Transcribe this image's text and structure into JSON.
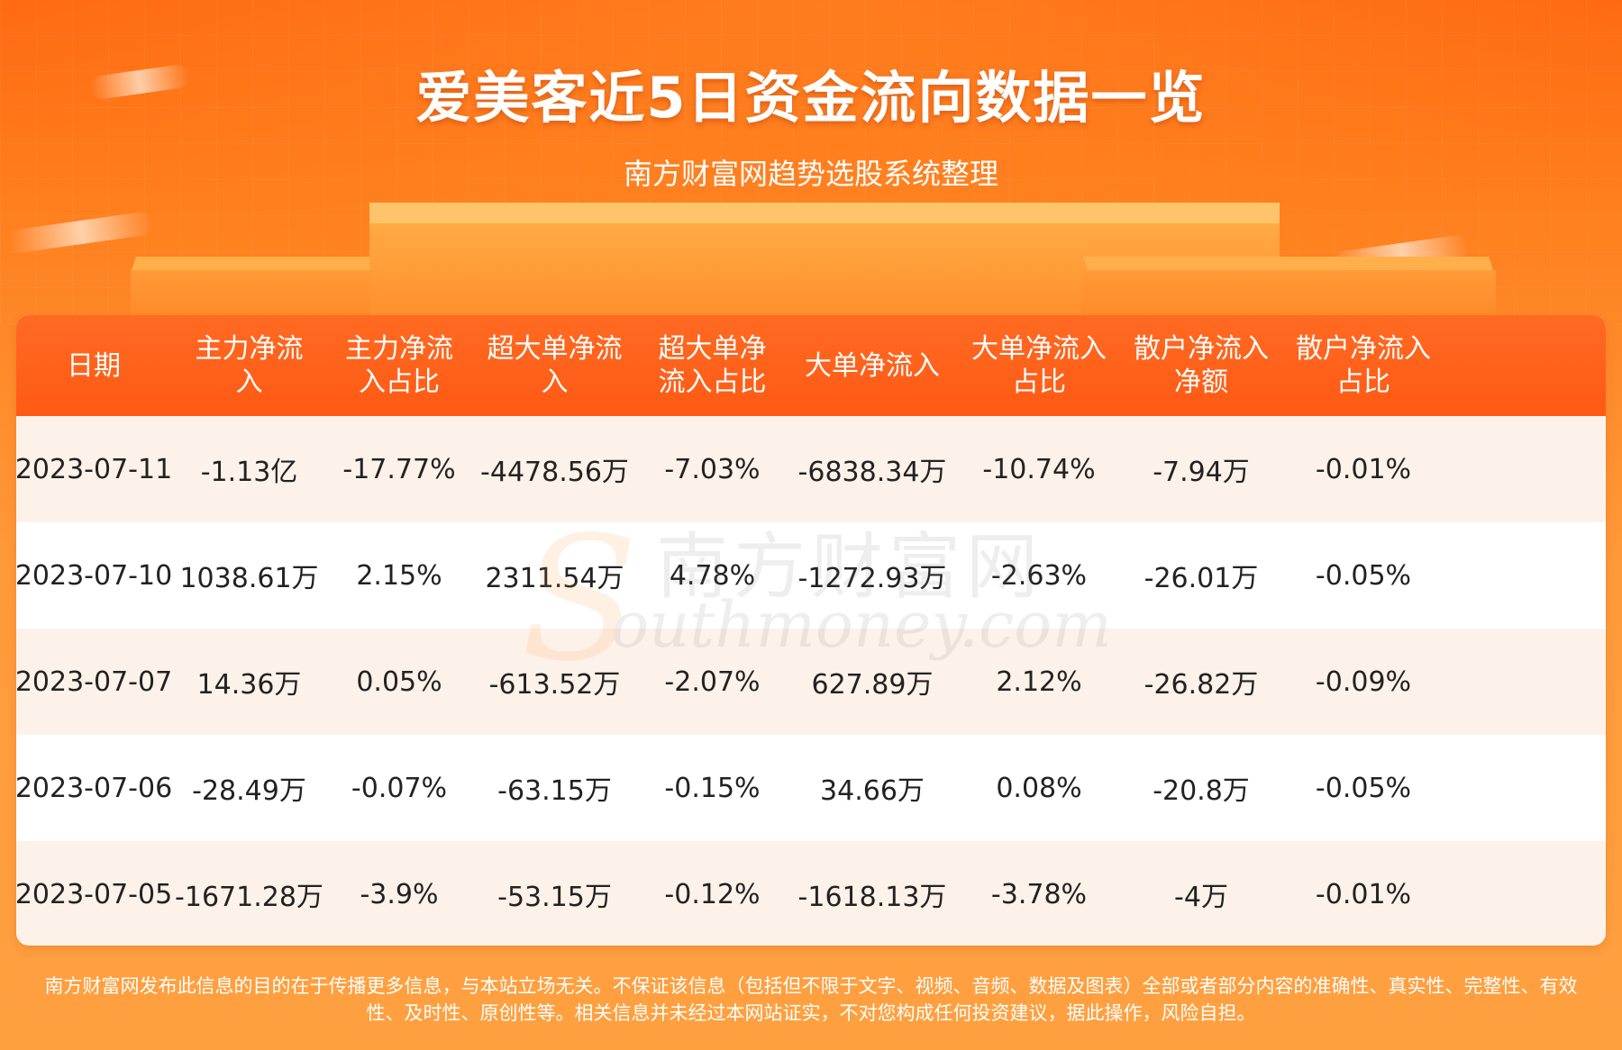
{
  "header": {
    "title": "爱美客近5日资金流向数据一览",
    "subtitle": "南方财富网趋势选股系统整理"
  },
  "watermark": {
    "cn": "南方财富网",
    "en": "outhmoney.com",
    "s": "S"
  },
  "chart_data": {
    "type": "table",
    "title": "爱美客近5日资金流向数据一览",
    "subtitle": "南方财富网趋势选股系统整理",
    "columns": [
      "日期",
      "主力净流入",
      "主力净流入占比",
      "超大单净流入",
      "超大单净流入占比",
      "大单净流入",
      "大单净流入占比",
      "散户净流入净额",
      "散户净流入占比"
    ],
    "rows": [
      [
        "2023-07-11",
        "-1.13亿",
        "-17.77%",
        "-4478.56万",
        "-7.03%",
        "-6838.34万",
        "-10.74%",
        "-7.94万",
        "-0.01%"
      ],
      [
        "2023-07-10",
        "1038.61万",
        "2.15%",
        "2311.54万",
        "4.78%",
        "-1272.93万",
        "-2.63%",
        "-26.01万",
        "-0.05%"
      ],
      [
        "2023-07-07",
        "14.36万",
        "0.05%",
        "-613.52万",
        "-2.07%",
        "627.89万",
        "2.12%",
        "-26.82万",
        "-0.09%"
      ],
      [
        "2023-07-06",
        "-28.49万",
        "-0.07%",
        "-63.15万",
        "-0.15%",
        "34.66万",
        "0.08%",
        "-20.8万",
        "-0.05%"
      ],
      [
        "2023-07-05",
        "-1671.28万",
        "-3.9%",
        "-53.15万",
        "-0.12%",
        "-1618.13万",
        "-3.78%",
        "-4万",
        "-0.01%"
      ]
    ]
  },
  "disclaimer": {
    "line1": "南方财富网发布此信息的目的在于传播更多信息，与本站立场无关。不保证该信息（包括但不限于文字、视频、音频、数据及图表）全部或者部分内容的准确性、真实性、完整性、有效",
    "line2": "性、及时性、原创性等。相关信息并未经过本网站证实，不对您构成任何投资建议，据此操作，风险自担。"
  },
  "colors": {
    "header_bg": "#ff5a14",
    "odd_row": "#fdf2e9",
    "even_row": "#ffffff",
    "page_gradient_top": "#ff6a12",
    "page_gradient_bottom": "#ffa040"
  }
}
